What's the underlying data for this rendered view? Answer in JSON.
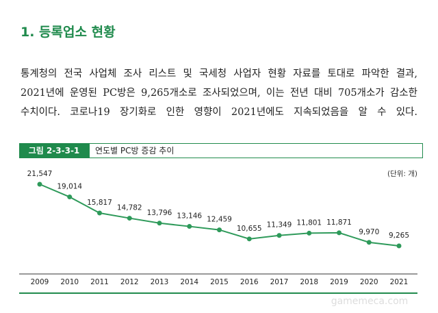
{
  "heading": "1. 등록업소 현황",
  "paragraph_lines": [
    "통계청의 전국 사업체 조사 리스트 및 국세청 사업자 현황 자료를 토대로 파악한 결과,",
    "2021년에 운영된 PC방은 9,265개소로 조사되었으며, 이는 전년 대비 705개소가 감소한",
    "수치이다. 코로나19 장기화로 인한 영향이 2021년에도 지속되었음을 알 수 있다."
  ],
  "figure": {
    "label": "그림 2-3-3-1",
    "title": "연도별 PC방 증감 추이",
    "unit": "(단위: 개)"
  },
  "chart_data": {
    "type": "line",
    "color": "#2e9a5a",
    "categories": [
      "2009",
      "2010",
      "2011",
      "2012",
      "2013",
      "2014",
      "2015",
      "2016",
      "2017",
      "2018",
      "2019",
      "2020",
      "2021"
    ],
    "values": [
      21547,
      19014,
      15817,
      14782,
      13796,
      13146,
      12459,
      10655,
      11349,
      11801,
      11871,
      9970,
      9265
    ],
    "value_labels": [
      "21,547",
      "19,014",
      "15,817",
      "14,782",
      "13,796",
      "13,146",
      "12,459",
      "10,655",
      "11,349",
      "11,801",
      "11,871",
      "9,970",
      "9,265"
    ]
  },
  "watermark": "gamemeca.com"
}
